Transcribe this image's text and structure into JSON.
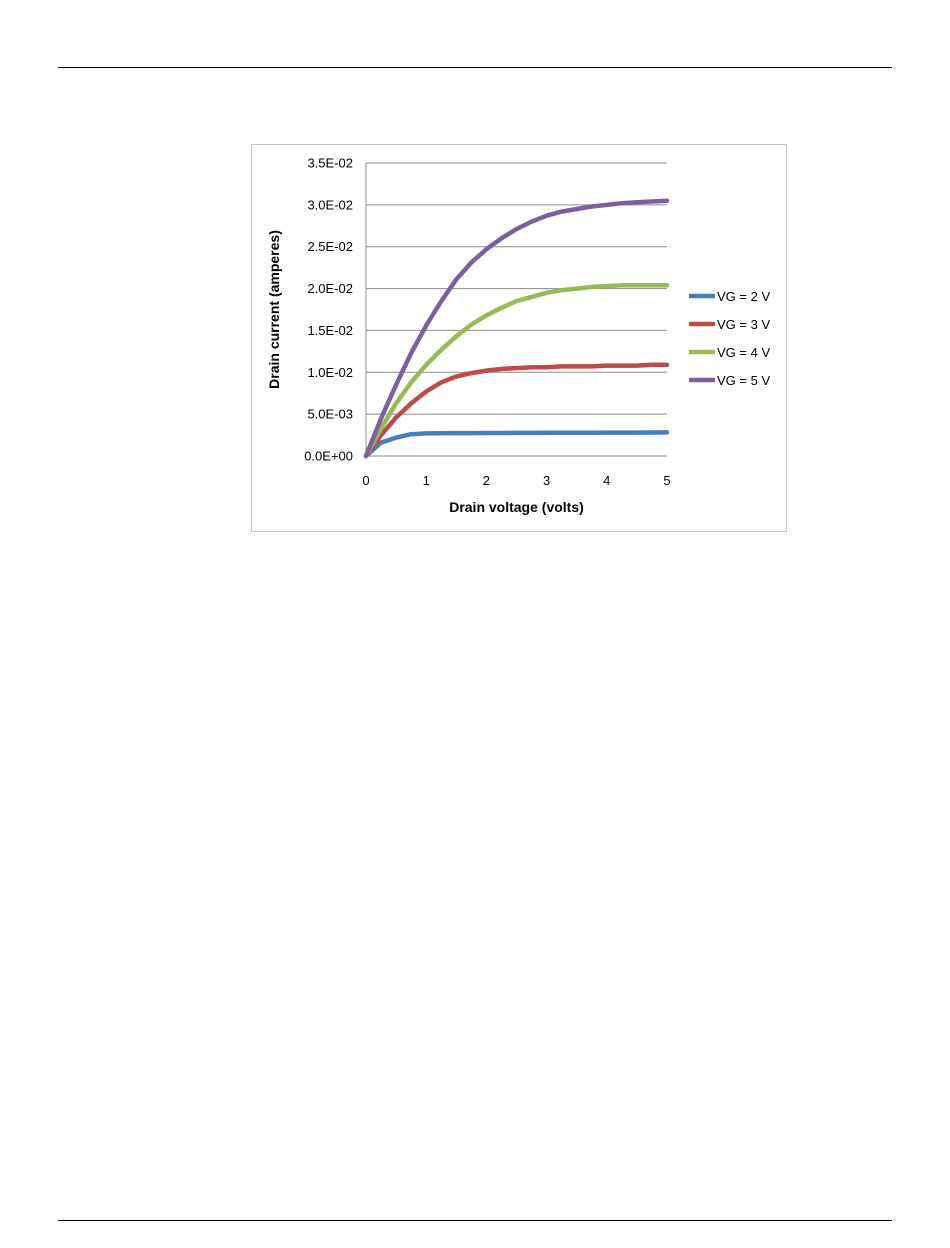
{
  "chart_data": {
    "type": "line",
    "title": "",
    "xlabel": "Drain voltage (volts)",
    "ylabel": "Drain current (amperes)",
    "xlim": [
      0,
      5
    ],
    "ylim": [
      0,
      0.035
    ],
    "x_ticks": [
      "0",
      "1",
      "2",
      "3",
      "4",
      "5"
    ],
    "y_ticks": [
      "0.0E+00",
      "5.0E-03",
      "1.0E-02",
      "1.5E-02",
      "2.0E-02",
      "2.5E-02",
      "3.0E-02",
      "3.5E-02"
    ],
    "grid": "horizontal",
    "legend_position": "right",
    "x": [
      0,
      0.25,
      0.5,
      0.75,
      1.0,
      1.25,
      1.5,
      1.75,
      2.0,
      2.25,
      2.5,
      2.75,
      3.0,
      3.25,
      3.5,
      3.75,
      4.0,
      4.25,
      4.5,
      4.75,
      5.0
    ],
    "series": [
      {
        "name": "VG = 2 V",
        "color": "#4a7ebb",
        "values": [
          0,
          0.0016,
          0.0022,
          0.0026,
          0.0027,
          0.00272,
          0.00273,
          0.00274,
          0.00275,
          0.00275,
          0.00276,
          0.00276,
          0.00277,
          0.00277,
          0.00278,
          0.00278,
          0.00279,
          0.0028,
          0.0028,
          0.00281,
          0.00282
        ]
      },
      {
        "name": "VG = 3 V",
        "color": "#be4b48",
        "values": [
          0,
          0.0025,
          0.0046,
          0.0063,
          0.0077,
          0.0088,
          0.0095,
          0.0099,
          0.0102,
          0.0104,
          0.0105,
          0.0106,
          0.0106,
          0.0107,
          0.0107,
          0.0107,
          0.0108,
          0.0108,
          0.0108,
          0.0109,
          0.0109
        ]
      },
      {
        "name": "VG = 4 V",
        "color": "#98b954",
        "values": [
          0,
          0.0033,
          0.0063,
          0.0088,
          0.0109,
          0.0127,
          0.0143,
          0.0157,
          0.0168,
          0.0177,
          0.0185,
          0.019,
          0.0195,
          0.0198,
          0.02,
          0.0202,
          0.0203,
          0.0204,
          0.0204,
          0.0204,
          0.0204
        ]
      },
      {
        "name": "VG = 5 V",
        "color": "#7d5fa0",
        "values": [
          0,
          0.0045,
          0.0085,
          0.0123,
          0.0156,
          0.0185,
          0.0211,
          0.0231,
          0.0247,
          0.026,
          0.0271,
          0.028,
          0.0287,
          0.0292,
          0.0295,
          0.0298,
          0.03,
          0.0302,
          0.0303,
          0.0304,
          0.0305
        ]
      }
    ]
  }
}
